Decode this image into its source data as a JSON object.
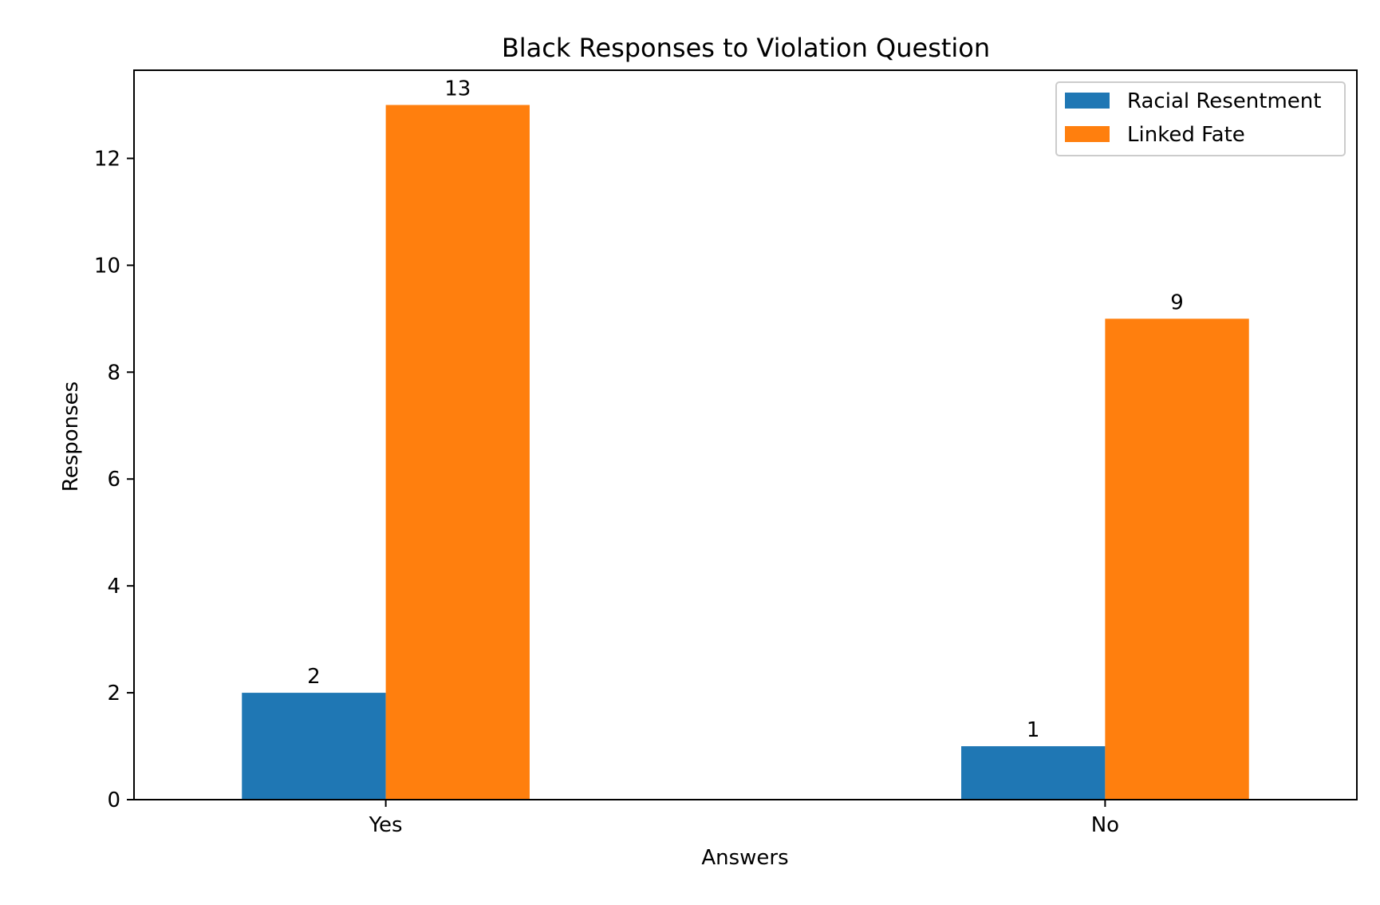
{
  "chart_data": {
    "type": "bar",
    "title": "Black Responses to Violation Question",
    "xlabel": "Answers",
    "ylabel": "Responses",
    "categories": [
      "Yes",
      "No"
    ],
    "series": [
      {
        "name": "Racial Resentment",
        "values": [
          2,
          1
        ],
        "color": "#1f77b4"
      },
      {
        "name": "Linked Fate",
        "values": [
          13,
          9
        ],
        "color": "#ff7f0e"
      }
    ],
    "ylim": [
      0,
      13.65
    ],
    "yticks": [
      0,
      2,
      4,
      6,
      8,
      10,
      12
    ],
    "grid": false,
    "legend_position": "top-right",
    "data_labels": true
  }
}
